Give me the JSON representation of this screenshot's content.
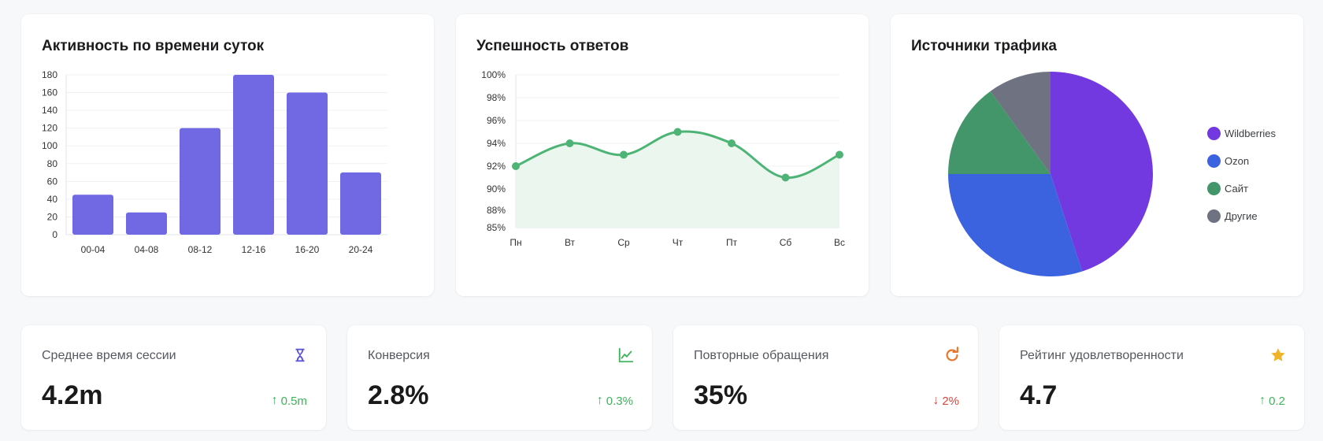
{
  "charts": {
    "activity": {
      "title": "Активность по времени суток"
    },
    "success": {
      "title": "Успешность ответов"
    },
    "traffic": {
      "title": "Источники трафика",
      "legend": [
        {
          "label": "Wildberries",
          "color": "#7339e0"
        },
        {
          "label": "Ozon",
          "color": "#3b63e0"
        },
        {
          "label": "Сайт",
          "color": "#43956a"
        },
        {
          "label": "Другие",
          "color": "#6f7280"
        }
      ]
    }
  },
  "chart_data": [
    {
      "type": "bar",
      "title": "Активность по времени суток",
      "categories": [
        "00-04",
        "04-08",
        "08-12",
        "12-16",
        "16-20",
        "20-24"
      ],
      "values": [
        45,
        25,
        120,
        180,
        160,
        70
      ],
      "ylim": [
        0,
        180
      ],
      "yticks": [
        0,
        20,
        40,
        60,
        80,
        100,
        120,
        140,
        160,
        180
      ],
      "color": "#7169e4",
      "grid": true
    },
    {
      "type": "line",
      "title": "Успешность ответов",
      "categories": [
        "Пн",
        "Вт",
        "Ср",
        "Чт",
        "Пт",
        "Сб",
        "Вс"
      ],
      "values": [
        92,
        94,
        93,
        95,
        94,
        91,
        93
      ],
      "ylim": [
        85,
        100
      ],
      "yticks": [
        85,
        88,
        90,
        92,
        94,
        96,
        98,
        100
      ],
      "ytick_labels": [
        "85%",
        "88%",
        "90%",
        "92%",
        "94%",
        "96%",
        "98%",
        "100%"
      ],
      "color": "#4eb476",
      "fill": "#ebf7ee",
      "grid": true
    },
    {
      "type": "pie",
      "title": "Источники трафика",
      "labels": [
        "Wildberries",
        "Ozon",
        "Сайт",
        "Другие"
      ],
      "values": [
        45,
        30,
        15,
        10
      ],
      "colors": [
        "#7339e0",
        "#3b63e0",
        "#43956a",
        "#6f7280"
      ],
      "legend_position": "right"
    }
  ],
  "kpis": [
    {
      "label": "Среднее время сессии",
      "value": "4.2m",
      "delta": "0.5m",
      "direction": "up",
      "icon": "hourglass-icon",
      "icon_color": "#5b56d6"
    },
    {
      "label": "Конверсия",
      "value": "2.8%",
      "delta": "0.3%",
      "direction": "up",
      "icon": "chart-line-icon",
      "icon_color": "#3fb25a"
    },
    {
      "label": "Повторные обращения",
      "value": "35%",
      "delta": "2%",
      "direction": "down",
      "icon": "refresh-icon",
      "icon_color": "#e8772e"
    },
    {
      "label": "Рейтинг удовлетворенности",
      "value": "4.7",
      "delta": "0.2",
      "direction": "up",
      "icon": "star-icon",
      "icon_color": "#f0b429"
    }
  ]
}
